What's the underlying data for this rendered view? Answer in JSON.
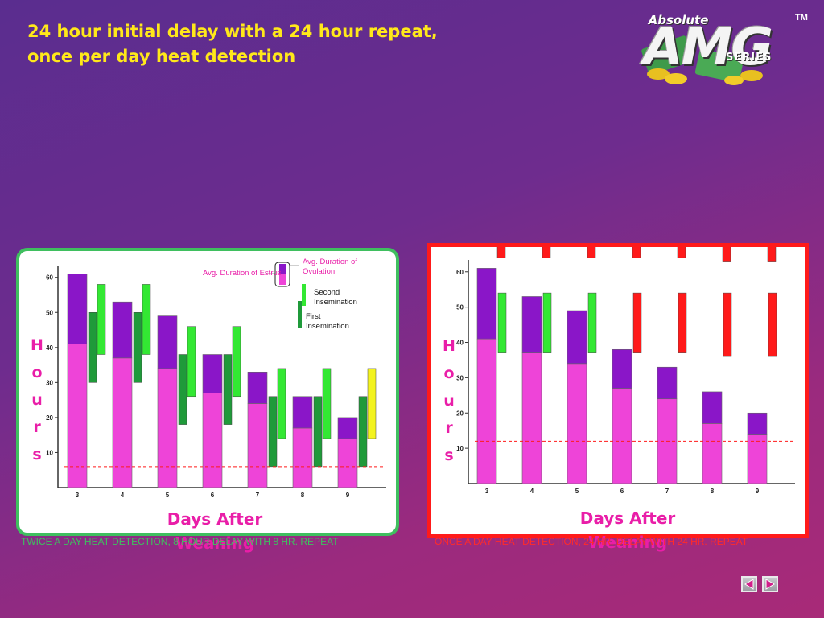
{
  "slide": {
    "title_line1": "24 hour initial delay with a 24 hour repeat,",
    "title_line2": "once per day heat detection",
    "logo": {
      "top": "Absolute",
      "word": "AMG",
      "series": "SERIES",
      "tm": "TM"
    }
  },
  "colors": {
    "estrus": "#ee44d8",
    "ovulation": "#8a16c8",
    "second": "#33e833",
    "first": "#1f9a3a",
    "red": "#ff1a1a",
    "yellow": "#f3f31f"
  },
  "chart_data": [
    {
      "type": "bar",
      "id": "left",
      "caption": "TWICE A DAY HEAT DETECTION, 8 HOUR DELAY WITH 8 HR. REPEAT",
      "ylabel_letters": [
        "H",
        "o",
        "u",
        "r",
        "s"
      ],
      "xlabel": "Days After Weaning",
      "xlabel_line1": "Days After",
      "xlabel_line2": "Weaning",
      "categories": [
        "3",
        "4",
        "5",
        "6",
        "7",
        "8",
        "9"
      ],
      "yticks": [
        "10",
        "20",
        "30",
        "40",
        "50",
        "60"
      ],
      "ylim": [
        0,
        62
      ],
      "series": [
        {
          "name": "Avg. Duration of Estrus",
          "values": [
            41,
            37,
            34,
            27,
            24,
            17,
            14
          ]
        },
        {
          "name": "Avg. Duration of Ovulation",
          "values": [
            61,
            53,
            49,
            38,
            33,
            26,
            20
          ]
        }
      ],
      "first_insemination": [
        [
          30,
          50
        ],
        [
          30,
          50
        ],
        [
          18,
          38
        ],
        [
          18,
          38
        ],
        [
          6,
          26
        ],
        [
          6,
          26
        ],
        [
          6,
          26
        ]
      ],
      "second_insemination": [
        [
          38,
          58
        ],
        [
          38,
          58
        ],
        [
          26,
          46
        ],
        [
          26,
          46
        ],
        [
          14,
          34
        ],
        [
          14,
          34
        ],
        [
          14,
          34
        ]
      ],
      "second_insemination_colors": [
        "second",
        "second",
        "second",
        "second",
        "second",
        "second",
        "yellow"
      ],
      "threshold_line": 6,
      "legend": {
        "estrus": "Avg. Duration of Estrus",
        "ovulation_line1": "Avg. Duration of",
        "ovulation_line2": "Ovulation",
        "second_line1": "Second",
        "second_line2": "Insemination",
        "first_line1": "First",
        "first_line2": "Insemination"
      }
    },
    {
      "type": "bar",
      "id": "right",
      "caption": "ONCE A DAY HEAT DETECTION, 24 HR. DELAY WITH 24 HR. REPEAT",
      "ylabel_letters": [
        "H",
        "o",
        "u",
        "r",
        "s"
      ],
      "xlabel": "Days After Weaning",
      "xlabel_line1": "Days After",
      "xlabel_line2": "Weaning",
      "categories": [
        "3",
        "4",
        "5",
        "6",
        "7",
        "8",
        "9"
      ],
      "yticks": [
        "10",
        "20",
        "30",
        "40",
        "50",
        "60"
      ],
      "ylim": [
        0,
        62
      ],
      "series": [
        {
          "name": "Avg. Duration of Estrus",
          "values": [
            41,
            37,
            34,
            27,
            24,
            17,
            14
          ]
        },
        {
          "name": "Avg. Duration of Ovulation",
          "values": [
            61,
            53,
            49,
            38,
            33,
            26,
            20
          ]
        }
      ],
      "insemination_bars": [
        [
          37,
          54
        ],
        [
          37,
          54
        ],
        [
          37,
          54
        ],
        [
          37,
          54
        ],
        [
          37,
          54
        ],
        [
          36,
          54
        ],
        [
          36,
          54
        ]
      ],
      "insemination_colors": [
        "second",
        "second",
        "second",
        "red",
        "red",
        "red",
        "red"
      ],
      "top_markers": [
        [
          64,
          68
        ],
        [
          64,
          68
        ],
        [
          64,
          68
        ],
        [
          64,
          68
        ],
        [
          64,
          68
        ],
        [
          63,
          68
        ],
        [
          63,
          68
        ]
      ],
      "threshold_line": 12
    }
  ],
  "nav": {
    "prev": "previous-slide",
    "next": "next-slide"
  }
}
